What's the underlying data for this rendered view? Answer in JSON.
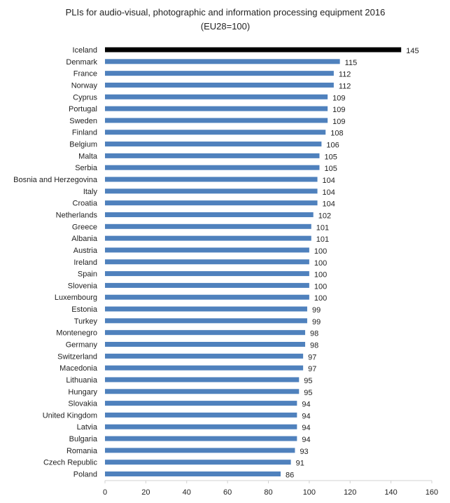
{
  "chart_data": {
    "type": "bar",
    "orientation": "horizontal",
    "title": "PLIs for  audio-visual, photographic and information processing equipment 2016",
    "subtitle": "(EU28=100)",
    "xlabel": "",
    "ylabel": "",
    "xlim": [
      0,
      160
    ],
    "xticks": [
      0,
      20,
      40,
      60,
      80,
      100,
      120,
      140,
      160
    ],
    "grid": false,
    "legend": "none",
    "colors": {
      "default": "#4f81bd",
      "highlight": "#000000"
    },
    "highlight": "Iceland",
    "categories": [
      "Iceland",
      "Denmark",
      "France",
      "Norway",
      "Cyprus",
      "Portugal",
      "Sweden",
      "Finland",
      "Belgium",
      "Malta",
      "Serbia",
      "Bosnia and Herzegovina",
      "Italy",
      "Croatia",
      "Netherlands",
      "Greece",
      "Albania",
      "Austria",
      "Ireland",
      "Spain",
      "Slovenia",
      "Luxembourg",
      "Estonia",
      "Turkey",
      "Montenegro",
      "Germany",
      "Switzerland",
      "Macedonia",
      "Lithuania",
      "Hungary",
      "Slovakia",
      "United Kingdom",
      "Latvia",
      "Bulgaria",
      "Romania",
      "Czech Republic",
      "Poland"
    ],
    "values": [
      145,
      115,
      112,
      112,
      109,
      109,
      109,
      108,
      106,
      105,
      105,
      104,
      104,
      104,
      102,
      101,
      101,
      100,
      100,
      100,
      100,
      100,
      99,
      99,
      98,
      98,
      97,
      97,
      95,
      95,
      94,
      94,
      94,
      94,
      93,
      91,
      86
    ]
  }
}
